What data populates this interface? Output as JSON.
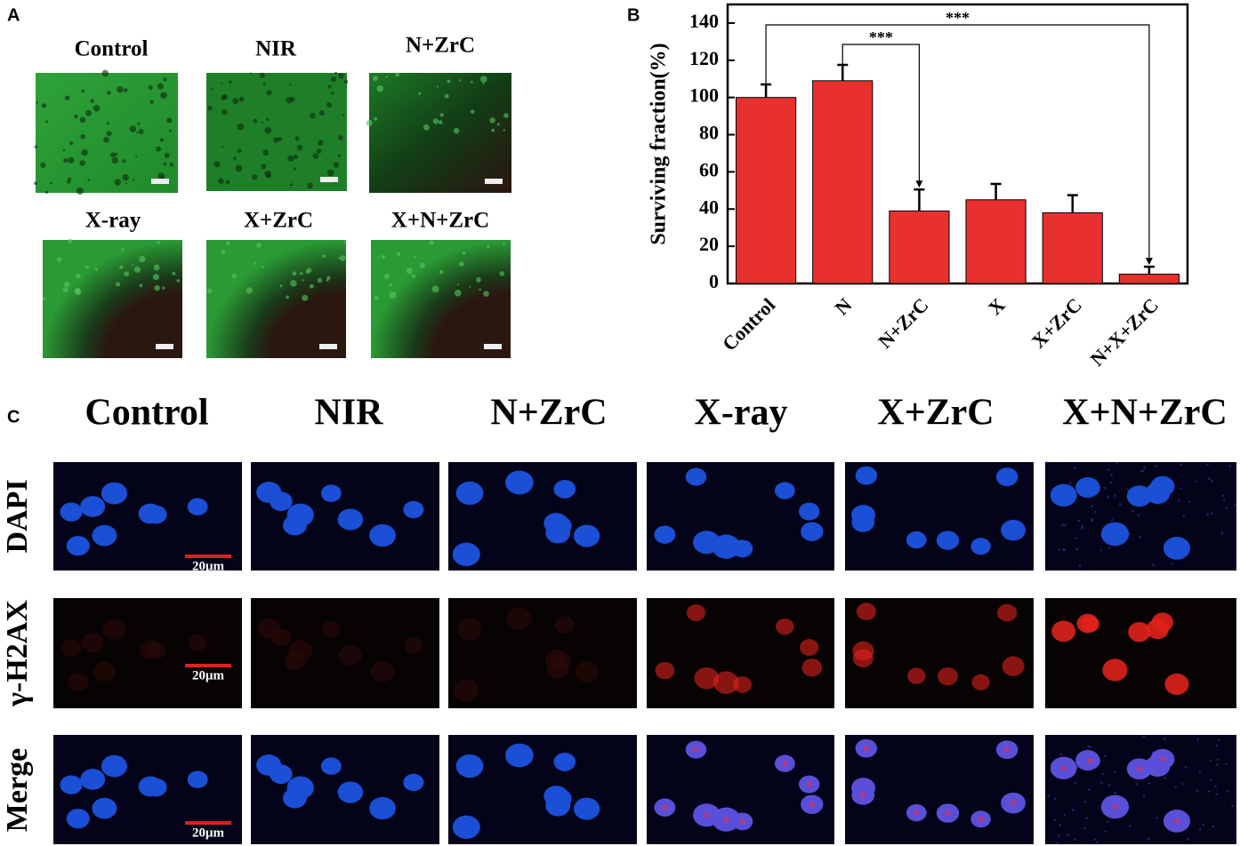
{
  "panel_a": {
    "letter": "A",
    "labels": [
      "Control",
      "NIR",
      "N+ZrC",
      "X-ray",
      "X+ZrC",
      "X+N+ZrC"
    ]
  },
  "chart_data": {
    "type": "bar",
    "letter": "B",
    "y_label": "Surviving fraction(%)",
    "categories": [
      "Control",
      "N",
      "N+ZrC",
      "X",
      "X+ZrC",
      "N+X+ZrC"
    ],
    "values": [
      100,
      109,
      39,
      45,
      38,
      5
    ],
    "errors": [
      7,
      8.5,
      11.5,
      8.5,
      9.5,
      4
    ],
    "color": "#e8312f",
    "ylim": [
      0,
      150
    ],
    "yticks": [
      0,
      20,
      40,
      60,
      80,
      100,
      120,
      140
    ],
    "annotations": [
      {
        "from": 0,
        "to": 5,
        "label": "***"
      },
      {
        "from": 1,
        "to": 2,
        "label": "***"
      }
    ]
  },
  "panel_c": {
    "letter": "C",
    "columns": [
      "Control",
      "NIR",
      "N+ZrC",
      "X-ray",
      "X+ZrC",
      "X+N+ZrC"
    ],
    "rows": [
      "DAPI",
      "γ-H2AX",
      "Merge"
    ],
    "scale_bar": "20μm"
  }
}
